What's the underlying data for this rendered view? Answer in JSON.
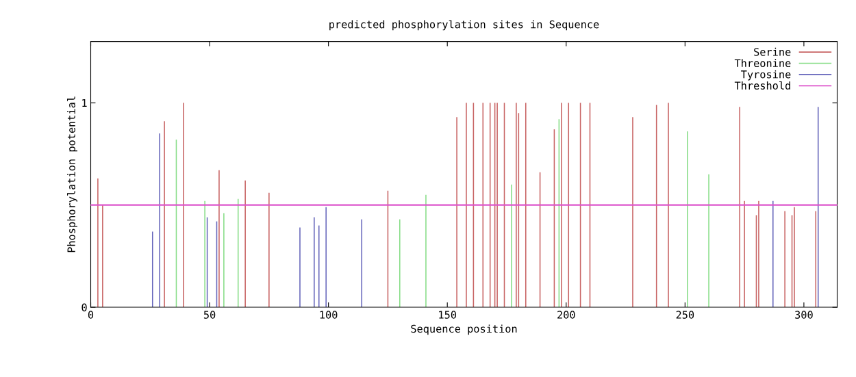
{
  "chart_data": {
    "type": "bar",
    "title": "predicted phosphorylation sites in Sequence",
    "xlabel": "Sequence position",
    "ylabel": "Phosphorylation potential",
    "xlim": [
      0,
      314
    ],
    "xticks": [
      0,
      50,
      100,
      150,
      200,
      250,
      300
    ],
    "ylim": [
      0,
      1.3
    ],
    "yticks": [
      0,
      1
    ],
    "grid": false,
    "legend": "top right",
    "series": [
      {
        "name": "Serine",
        "color": "#c86464",
        "x": [
          3,
          5,
          31,
          39,
          54,
          65,
          75,
          125,
          154,
          158,
          161,
          165,
          168,
          170,
          171,
          174,
          179,
          180,
          183,
          189,
          195,
          198,
          201,
          206,
          210,
          228,
          238,
          243,
          273,
          275,
          280,
          281,
          292,
          295,
          296,
          305
        ],
        "values": [
          0.63,
          0.5,
          0.91,
          1.0,
          0.67,
          0.62,
          0.56,
          0.57,
          0.93,
          1.0,
          1.0,
          1.0,
          1.0,
          1.0,
          1.0,
          1.0,
          1.0,
          0.95,
          1.0,
          0.66,
          0.87,
          1.0,
          1.0,
          1.0,
          1.0,
          0.93,
          0.99,
          1.0,
          0.98,
          0.52,
          0.45,
          0.52,
          0.47,
          0.45,
          0.49,
          0.47
        ]
      },
      {
        "name": "Threonine",
        "color": "#88dd88",
        "x": [
          36,
          48,
          56,
          62,
          130,
          141,
          177,
          197,
          251,
          260
        ],
        "values": [
          0.82,
          0.52,
          0.46,
          0.53,
          0.43,
          0.55,
          0.6,
          0.92,
          0.86,
          0.65
        ]
      },
      {
        "name": "Tyrosine",
        "color": "#6666bb",
        "x": [
          26,
          29,
          49,
          53,
          88,
          94,
          96,
          99,
          114,
          287,
          306
        ],
        "values": [
          0.37,
          0.85,
          0.44,
          0.42,
          0.39,
          0.44,
          0.4,
          0.49,
          0.43,
          0.52,
          0.98
        ]
      }
    ],
    "ref_lines": [
      {
        "axis": "y",
        "value": 0.5,
        "label": "Threshold",
        "color": "#dd55cc"
      }
    ]
  }
}
